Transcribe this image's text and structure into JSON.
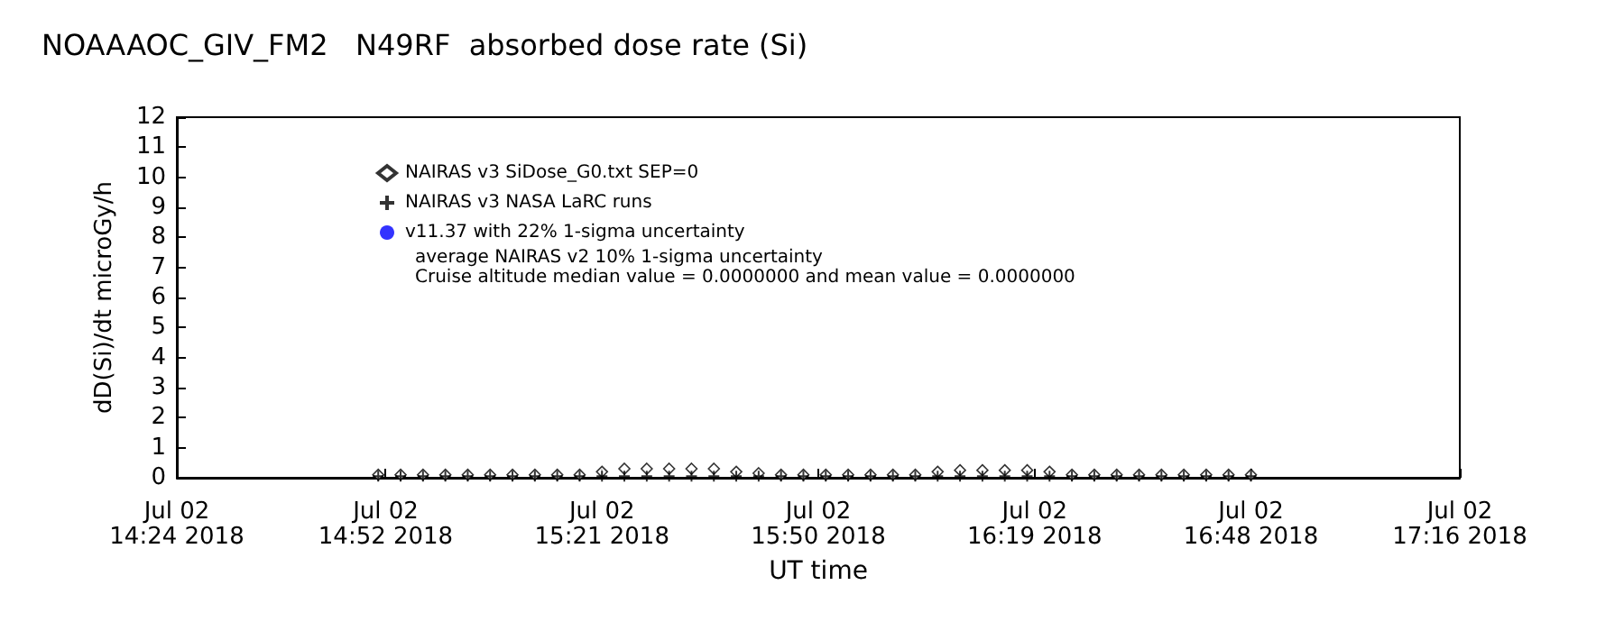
{
  "chart_data": {
    "type": "scatter",
    "title": "NOAAAOC_GIV_FM2   N49RF  absorbed dose rate (Si)",
    "xlabel": "UT time",
    "ylabel": "dD(Si)/dt microGy/h",
    "x": [
      "2018-07-02T14:51",
      "2018-07-02T14:54",
      "2018-07-02T14:57",
      "2018-07-02T15:00",
      "2018-07-02T15:03",
      "2018-07-02T15:06",
      "2018-07-02T15:09",
      "2018-07-02T15:12",
      "2018-07-02T15:15",
      "2018-07-02T15:18",
      "2018-07-02T15:21",
      "2018-07-02T15:24",
      "2018-07-02T15:27",
      "2018-07-02T15:30",
      "2018-07-02T15:33",
      "2018-07-02T15:36",
      "2018-07-02T15:39",
      "2018-07-02T15:42",
      "2018-07-02T15:45",
      "2018-07-02T15:48",
      "2018-07-02T15:51",
      "2018-07-02T15:54",
      "2018-07-02T15:57",
      "2018-07-02T16:00",
      "2018-07-02T16:03",
      "2018-07-02T16:06",
      "2018-07-02T16:09",
      "2018-07-02T16:12",
      "2018-07-02T16:15",
      "2018-07-02T16:18",
      "2018-07-02T16:21",
      "2018-07-02T16:24",
      "2018-07-02T16:27",
      "2018-07-02T16:30",
      "2018-07-02T16:33",
      "2018-07-02T16:36",
      "2018-07-02T16:39",
      "2018-07-02T16:42",
      "2018-07-02T16:45",
      "2018-07-02T16:48"
    ],
    "series": [
      {
        "name": "NAIRAS v3 SiDose_G0.txt SEP=0",
        "color": "#000000",
        "marker": "diamond",
        "values": [
          0.1,
          0.1,
          0.1,
          0.1,
          0.1,
          0.1,
          0.1,
          0.1,
          0.1,
          0.1,
          0.2,
          0.3,
          0.3,
          0.3,
          0.3,
          0.3,
          0.2,
          0.15,
          0.1,
          0.1,
          0.1,
          0.1,
          0.1,
          0.1,
          0.1,
          0.2,
          0.25,
          0.25,
          0.25,
          0.25,
          0.2,
          0.1,
          0.1,
          0.1,
          0.1,
          0.1,
          0.1,
          0.1,
          0.1,
          0.1
        ]
      },
      {
        "name": "NAIRAS v3 NASA LaRC runs",
        "color": "#000000",
        "marker": "cross",
        "values": [
          0.05,
          0.05,
          0.05,
          0.05,
          0.05,
          0.05,
          0.05,
          0.05,
          0.05,
          0.05,
          0.05,
          0.05,
          0.05,
          0.05,
          0.05,
          0.05,
          0.05,
          0.05,
          0.05,
          0.05,
          0.05,
          0.05,
          0.05,
          0.05,
          0.05,
          0.05,
          0.05,
          0.05,
          0.05,
          0.05,
          0.05,
          0.05,
          0.05,
          0.05,
          0.05,
          0.05,
          0.05,
          0.05,
          0.05,
          0.05
        ]
      },
      {
        "name": "v11.37 with 22% 1-sigma uncertainty",
        "color": "#0000ff",
        "marker": "circle",
        "values": [
          null,
          null,
          null,
          null,
          null,
          null,
          null,
          null,
          null,
          null,
          null,
          null,
          null,
          null,
          null,
          null,
          null,
          null,
          null,
          null,
          null,
          null,
          null,
          null,
          null,
          null,
          null,
          null,
          null,
          null,
          null,
          null,
          null,
          null,
          null,
          null,
          null,
          null,
          null,
          null
        ]
      }
    ],
    "annotations": [
      "average NAIRAS v2 10% 1-sigma uncertainty",
      "Cruise altitude median value = 0.0000000 and mean value = 0.0000000"
    ],
    "xlim": [
      "2018-07-02T14:24",
      "2018-07-02T17:16"
    ],
    "xticks": [
      {
        "value": "2018-07-02T14:24",
        "label": "Jul 02\n14:24 2018"
      },
      {
        "value": "2018-07-02T14:52",
        "label": "Jul 02\n14:52 2018"
      },
      {
        "value": "2018-07-02T15:21",
        "label": "Jul 02\n15:21 2018"
      },
      {
        "value": "2018-07-02T15:50",
        "label": "Jul 02\n15:50 2018"
      },
      {
        "value": "2018-07-02T16:19",
        "label": "Jul 02\n16:19 2018"
      },
      {
        "value": "2018-07-02T16:48",
        "label": "Jul 02\n16:48 2018"
      },
      {
        "value": "2018-07-02T17:16",
        "label": "Jul 02\n17:16 2018"
      }
    ],
    "ylim": [
      0,
      12
    ],
    "yticks": [
      0,
      1,
      2,
      3,
      4,
      5,
      6,
      7,
      8,
      9,
      10,
      11,
      12
    ],
    "grid": false,
    "legend": "top left"
  }
}
